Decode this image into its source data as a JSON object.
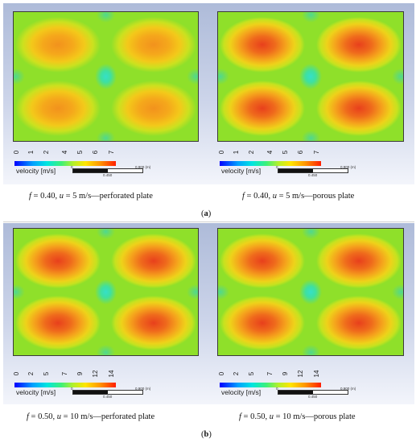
{
  "panels": [
    {
      "id": "a",
      "label": "a",
      "subfigures": [
        {
          "intensity": "weak",
          "legend": {
            "ticks": [
              "0",
              "1",
              "2",
              "4",
              "5",
              "6",
              "7"
            ],
            "label": "velocity [m/s]"
          },
          "scale": {
            "zero": "0",
            "mid": "0.450",
            "end": "0.900 (m)"
          },
          "caption": {
            "f_sym": "f",
            "f_val": " = 0.40, ",
            "u_sym": "u",
            "u_val": " = 5 m/s—perforated plate"
          }
        },
        {
          "intensity": "strong",
          "legend": {
            "ticks": [
              "0",
              "1",
              "2",
              "4",
              "5",
              "6",
              "7"
            ],
            "label": "velocity [m/s]"
          },
          "scale": {
            "zero": "0",
            "mid": "0.450",
            "end": "0.900 (m)"
          },
          "caption": {
            "f_sym": "f",
            "f_val": " = 0.40, ",
            "u_sym": "u",
            "u_val": " = 5 m/s—porous plate"
          }
        }
      ]
    },
    {
      "id": "b",
      "label": "b",
      "subfigures": [
        {
          "intensity": "strong",
          "legend": {
            "ticks": [
              "0",
              "2",
              "5",
              "7",
              "9",
              "12",
              "14"
            ],
            "label": "velocity [m/s]"
          },
          "scale": {
            "zero": "0",
            "mid": "0.450",
            "end": "0.900 (m)"
          },
          "caption": {
            "f_sym": "f",
            "f_val": " = 0.50, ",
            "u_sym": "u",
            "u_val": " = 10 m/s—perforated plate"
          }
        },
        {
          "intensity": "strong",
          "legend": {
            "ticks": [
              "0",
              "2",
              "5",
              "7",
              "9",
              "12",
              "14"
            ],
            "label": "velocity [m/s]"
          },
          "scale": {
            "zero": "0",
            "mid": "0.450",
            "end": "0.900 (m)"
          },
          "caption": {
            "f_sym": "f",
            "f_val": " = 0.50, ",
            "u_sym": "u",
            "u_val": " = 10 m/s—porous plate"
          }
        }
      ]
    }
  ]
}
